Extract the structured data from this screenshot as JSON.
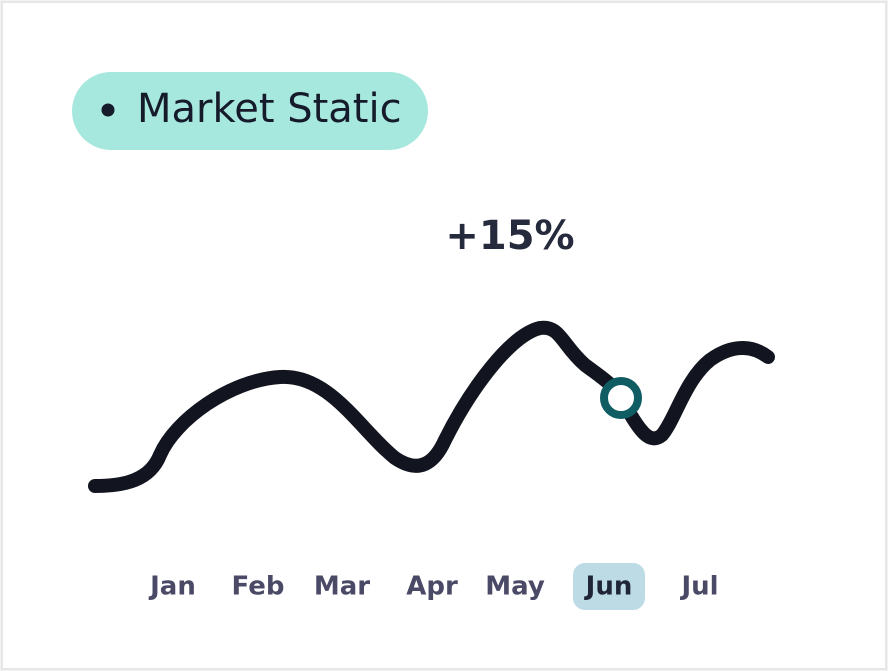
{
  "badge": {
    "label": "Market Static"
  },
  "change": "+15%",
  "months": [
    {
      "label": "Jan"
    },
    {
      "label": "Feb"
    },
    {
      "label": "Mar"
    },
    {
      "label": "Apr"
    },
    {
      "label": "May"
    },
    {
      "label": "Jun",
      "selected": true
    },
    {
      "label": "Jul"
    }
  ]
}
